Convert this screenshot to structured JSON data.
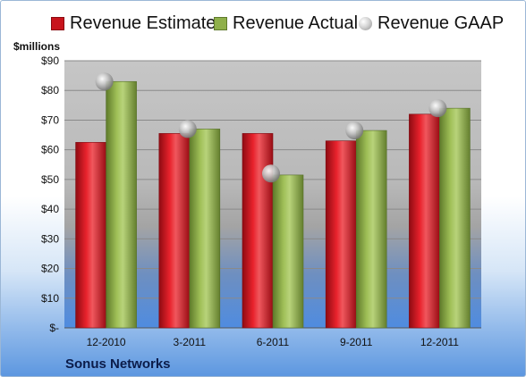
{
  "legend": {
    "estimate": "Revenue Estimate",
    "actual": "Revenue Actual",
    "gaap": "Revenue GAAP"
  },
  "unit_label": "$millions",
  "company": "Sonus Networks",
  "colors": {
    "estimate": "#c8141c",
    "actual": "#8fb04a",
    "gaap": "#c0c0c0"
  },
  "chart_data": {
    "type": "bar",
    "categories": [
      "12-2010",
      "3-2011",
      "6-2011",
      "9-2011",
      "12-2011"
    ],
    "series": [
      {
        "name": "Revenue Estimate",
        "values": [
          62.5,
          65.5,
          65.5,
          63.0,
          72.0
        ]
      },
      {
        "name": "Revenue Actual",
        "values": [
          83.0,
          67.0,
          51.5,
          66.5,
          74.0
        ]
      },
      {
        "name": "Revenue GAAP",
        "marker": "bubble",
        "values": [
          83.0,
          67.0,
          52.0,
          66.5,
          74.0
        ]
      }
    ],
    "ylabel": "$millions",
    "ylim": [
      0,
      90
    ],
    "ytick_labels": [
      "$-",
      "$10",
      "$20",
      "$30",
      "$40",
      "$50",
      "$60",
      "$70",
      "$80",
      "$90"
    ],
    "grid": true,
    "legend_position": "top"
  }
}
